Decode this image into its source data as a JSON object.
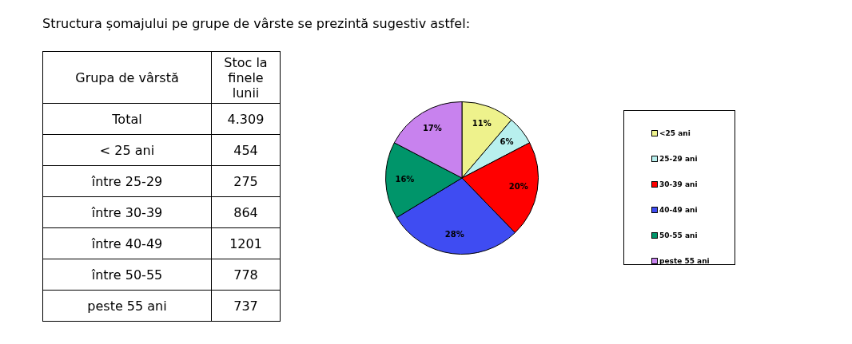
{
  "chart_data": [
    {
      "type": "other",
      "title": "Structura șomajului pe grupe de vârste se prezintă sugestiv astfel:",
      "xlabel": "Grupa de vârstă",
      "ylabel": "Stoc la finele lunii",
      "categories": [
        "Total",
        "< 25 ani",
        "între 25-29",
        "între 30-39",
        "între 40-49",
        "între 50-55",
        "peste 55 ani"
      ],
      "value_labels": [
        "4.309",
        "454",
        "275",
        "864",
        "1201",
        "778",
        "737"
      ]
    },
    {
      "type": "pie",
      "categories": [
        "<25 ani",
        "25-29 ani",
        "30-39 ani",
        "40-49 ani",
        "50-55 ani",
        "peste 55 ani"
      ],
      "values": [
        11,
        6,
        20,
        28,
        16,
        17
      ],
      "colors": [
        "#eef28c",
        "#b8f0ee",
        "#ff0000",
        "#3f4cf2",
        "#00956a",
        "#c882ee"
      ],
      "value_labels": [
        "11%",
        "6%",
        "20%",
        "28%",
        "16%",
        "17%"
      ],
      "legend": "right"
    }
  ]
}
